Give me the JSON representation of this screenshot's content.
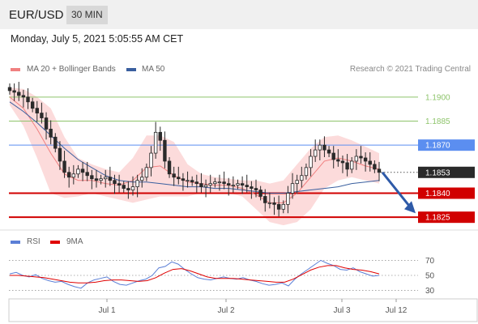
{
  "header": {
    "symbol": "EUR/USD",
    "timeframe": "30 MIN"
  },
  "datetime": "Monday, July 5, 2021 5:05:55 AM CET",
  "legend_main": [
    {
      "label": "MA 20 + Bollinger Bands",
      "color": "#f08080"
    },
    {
      "label": "MA 50",
      "color": "#3a5f9f"
    }
  ],
  "legend_rsi": [
    {
      "label": "RSI",
      "color": "#5b7fd6"
    },
    {
      "label": "9MA",
      "color": "#e00000"
    }
  ],
  "credit": "Research © 2021 Trading Central",
  "colors": {
    "resistance_green": "#8ec46b",
    "pivot_blue": "#5b8ef0",
    "support_red": "#d10000",
    "current_dark": "#2a2a2a",
    "arrow": "#2e5aa8"
  },
  "chart_data": [
    {
      "type": "candlestick",
      "title": "EUR/USD 30 MIN",
      "ylim": [
        1.1817,
        1.1908
      ],
      "x_ticks": [
        "Jul 1",
        "Jul 2",
        "Jul 3",
        "Jul 12"
      ],
      "price_levels": [
        {
          "value": 1.19,
          "label": "1.1900",
          "kind": "resistance"
        },
        {
          "value": 1.1885,
          "label": "1.1885",
          "kind": "resistance"
        },
        {
          "value": 1.187,
          "label": "1.1870",
          "kind": "pivot"
        },
        {
          "value": 1.1853,
          "label": "1.1853",
          "kind": "current"
        },
        {
          "value": 1.184,
          "label": "1.1840",
          "kind": "support"
        },
        {
          "value": 1.1825,
          "label": "1.1825",
          "kind": "support"
        }
      ],
      "close_series": [
        1.1904,
        1.1903,
        1.1901,
        1.19,
        1.1897,
        1.1893,
        1.189,
        1.1887,
        1.188,
        1.1875,
        1.1868,
        1.186,
        1.1853,
        1.185,
        1.1852,
        1.1855,
        1.1853,
        1.1851,
        1.1849,
        1.1848,
        1.1849,
        1.185,
        1.1848,
        1.1846,
        1.1845,
        1.1843,
        1.1842,
        1.1844,
        1.1848,
        1.185,
        1.1856,
        1.1865,
        1.1878,
        1.1873,
        1.186,
        1.1852,
        1.185,
        1.1849,
        1.1848,
        1.1848,
        1.1847,
        1.1846,
        1.1844,
        1.1845,
        1.1846,
        1.1847,
        1.1847,
        1.1846,
        1.1845,
        1.1845,
        1.1846,
        1.1845,
        1.1844,
        1.1843,
        1.1842,
        1.1838,
        1.1834,
        1.1834,
        1.1833,
        1.183,
        1.1833,
        1.184,
        1.1846,
        1.1848,
        1.1851,
        1.1856,
        1.1863,
        1.1867,
        1.187,
        1.1867,
        1.1865,
        1.1861,
        1.186,
        1.1859,
        1.1855,
        1.186,
        1.1863,
        1.1862,
        1.186,
        1.1858,
        1.1855,
        1.1853
      ],
      "ma50_series": [
        1.1897,
        1.1891,
        1.1884,
        1.1876,
        1.1868,
        1.1861,
        1.1856,
        1.1851,
        1.1848,
        1.1847,
        1.1847,
        1.1846,
        1.1845,
        1.1844,
        1.1844,
        1.1843,
        1.1843,
        1.1842,
        1.1841,
        1.184,
        1.184,
        1.1841,
        1.1842,
        1.1843,
        1.1844,
        1.1846,
        1.1847,
        1.1848
      ],
      "ma20_series": [
        1.19,
        1.1893,
        1.188,
        1.1865,
        1.1852,
        1.1848,
        1.1848,
        1.1846,
        1.1845,
        1.1848,
        1.1856,
        1.1857,
        1.1851,
        1.1847,
        1.1846,
        1.1845,
        1.1845,
        1.1843,
        1.1839,
        1.1834,
        1.1834,
        1.184,
        1.185,
        1.186,
        1.1862,
        1.186,
        1.1857,
        1.1855
      ],
      "bollinger_upper": [
        1.1906,
        1.1905,
        1.19,
        1.1893,
        1.1875,
        1.1862,
        1.1858,
        1.1855,
        1.1853,
        1.1862,
        1.1876,
        1.1876,
        1.1872,
        1.1858,
        1.1852,
        1.185,
        1.1849,
        1.1848,
        1.1848,
        1.1846,
        1.1848,
        1.1858,
        1.1868,
        1.1875,
        1.1876,
        1.1873,
        1.1869,
        1.1865
      ],
      "bollinger_lower": [
        1.1895,
        1.1882,
        1.1862,
        1.184,
        1.1837,
        1.1838,
        1.184,
        1.1838,
        1.1836,
        1.1834,
        1.1836,
        1.1838,
        1.1838,
        1.1838,
        1.184,
        1.184,
        1.184,
        1.1838,
        1.183,
        1.1822,
        1.182,
        1.1822,
        1.183,
        1.1843,
        1.1848,
        1.185,
        1.1848,
        1.1846
      ],
      "forecast_arrow": {
        "from": 1.1853,
        "to": 1.1829
      }
    },
    {
      "type": "line",
      "title": "RSI",
      "ylim": [
        22,
        78
      ],
      "y_ticks": [
        "70",
        "50",
        "30"
      ],
      "series": [
        {
          "name": "RSI",
          "values": [
            52,
            54,
            50,
            48,
            51,
            46,
            43,
            41,
            42,
            38,
            35,
            33,
            40,
            44,
            46,
            48,
            42,
            38,
            37,
            40,
            43,
            45,
            50,
            60,
            62,
            68,
            65,
            58,
            52,
            47,
            45,
            44,
            46,
            48,
            46,
            45,
            47,
            44,
            42,
            39,
            37,
            38,
            40,
            36,
            45,
            52,
            58,
            64,
            70,
            66,
            63,
            58,
            57,
            60,
            55,
            52,
            49,
            50
          ]
        },
        {
          "name": "9MA",
          "values": [
            50,
            50,
            49,
            48,
            47,
            45,
            43,
            41,
            40,
            40,
            41,
            43,
            44,
            44,
            43,
            42,
            43,
            47,
            53,
            58,
            59,
            56,
            52,
            48,
            46,
            46,
            46,
            45,
            44,
            43,
            42,
            41,
            41,
            45,
            51,
            57,
            61,
            63,
            63,
            60,
            58,
            57,
            55,
            52
          ]
        }
      ]
    }
  ]
}
